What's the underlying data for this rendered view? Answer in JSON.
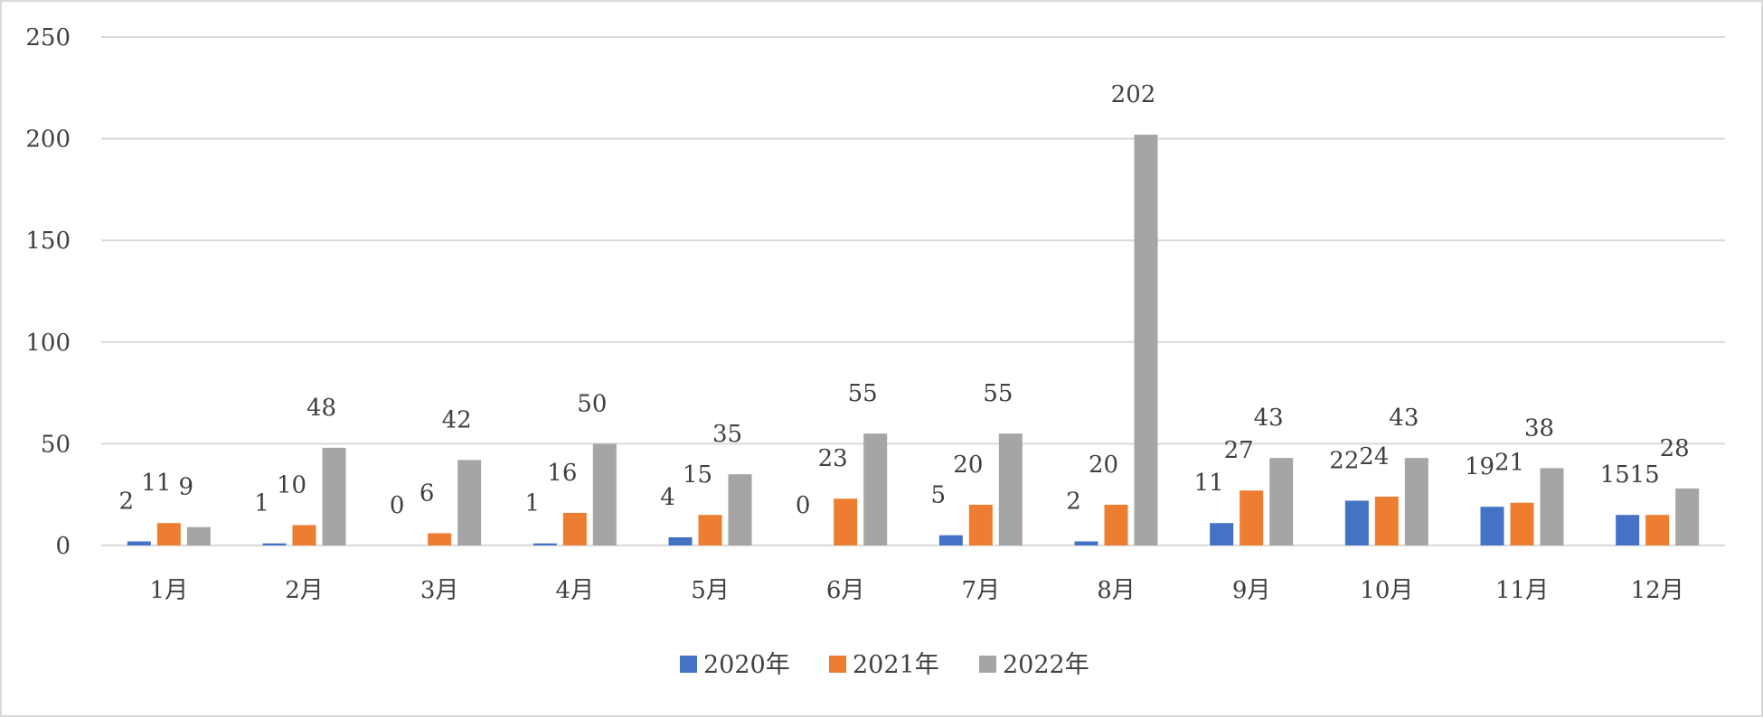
{
  "chart_data": {
    "type": "bar",
    "categories": [
      "1月",
      "2月",
      "3月",
      "4月",
      "5月",
      "6月",
      "7月",
      "8月",
      "9月",
      "10月",
      "11月",
      "12月"
    ],
    "series": [
      {
        "name": "2020年",
        "color": "#4472c4",
        "values": [
          2,
          1,
          0,
          1,
          4,
          0,
          5,
          2,
          11,
          22,
          19,
          15
        ]
      },
      {
        "name": "2021年",
        "color": "#ed7d31",
        "values": [
          11,
          10,
          6,
          16,
          15,
          23,
          20,
          20,
          27,
          24,
          21,
          15
        ]
      },
      {
        "name": "2022年",
        "color": "#a5a5a5",
        "values": [
          9,
          48,
          42,
          50,
          35,
          55,
          55,
          202,
          43,
          43,
          38,
          28
        ]
      }
    ],
    "ylim": [
      0,
      250
    ],
    "yticks": [
      "0",
      "50",
      "100",
      "150",
      "200",
      "250"
    ],
    "grid": true,
    "data_labels": true,
    "legend_position": "bottom"
  }
}
